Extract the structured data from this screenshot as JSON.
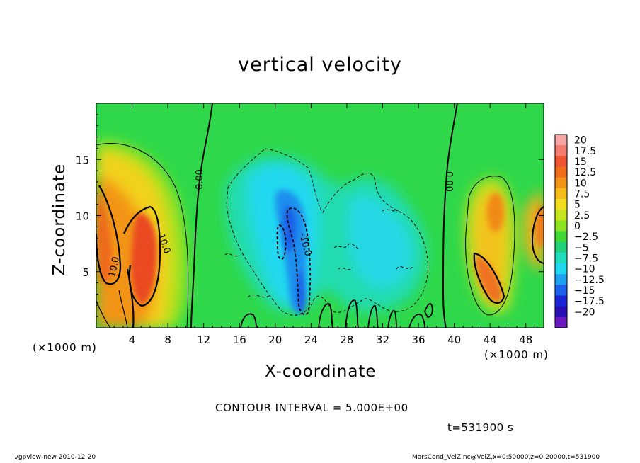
{
  "chart_data": {
    "type": "heatmap",
    "title": "vertical velocity",
    "xlabel": "X-coordinate",
    "ylabel": "Z-coordinate",
    "x_unit": "(×1000 m)",
    "y_unit": "(×1000 m)",
    "xlim": [
      0,
      50
    ],
    "ylim": [
      0,
      20
    ],
    "x_ticks": [
      4,
      8,
      12,
      16,
      20,
      24,
      28,
      32,
      36,
      40,
      44,
      48
    ],
    "y_ticks": [
      5,
      10,
      15
    ],
    "colorbar": {
      "levels": [
        20,
        17.5,
        15,
        12.5,
        10,
        7.5,
        5,
        2.5,
        0,
        -2.5,
        -5,
        -7.5,
        -10,
        -12.5,
        -15,
        -17.5,
        -20
      ],
      "labels": [
        "20",
        "17.5",
        "15",
        "12.5",
        "10",
        "7.5",
        "5",
        "2.5",
        "0",
        "−2.5",
        "−5",
        "−7.5",
        "−10",
        "−12.5",
        "−15",
        "−17.5",
        "−20"
      ],
      "colors": [
        "#f7a6a6",
        "#f37c6e",
        "#ee5532",
        "#f06d1c",
        "#f29418",
        "#f5bb1a",
        "#f1dc1e",
        "#c6e41f",
        "#8be41f",
        "#40d832",
        "#20d27a",
        "#22dcc0",
        "#22d8f0",
        "#1ea0f0",
        "#1d62ea",
        "#1c24d6",
        "#2a10b4",
        "#6a18c0"
      ]
    },
    "contour_labels": [
      "10.0",
      "10.0",
      "0.00",
      "-10.0",
      "0.00"
    ],
    "contour_interval_text": "CONTOUR INTERVAL = 5.000E+00",
    "time_text": "t=531900  s",
    "updraft_cores": [
      {
        "x": 2.0,
        "z": 7.5,
        "w": 15
      },
      {
        "x": 5.5,
        "z": 5.0,
        "w": 15
      },
      {
        "x": 3.5,
        "z": 12.0,
        "w": 7.5
      },
      {
        "x": 43.8,
        "z": 10.5,
        "w": 12.5
      },
      {
        "x": 44.2,
        "z": 6.0,
        "w": 12.5
      },
      {
        "x": 49.5,
        "z": 9.0,
        "w": 12.5
      }
    ],
    "downdraft_cores": [
      {
        "x": 22.5,
        "z": 8.0,
        "w": -12.5
      },
      {
        "x": 23.0,
        "z": 4.0,
        "w": -10
      },
      {
        "x": 21.0,
        "z": 12.5,
        "w": -7.5
      },
      {
        "x": 30.5,
        "z": 9.0,
        "w": -5
      }
    ]
  },
  "labels": {
    "x_unit_left": "(×1000 m)",
    "x_unit_right": "(×1000 m)",
    "footer_left": "./gpview-new    2010-12-20",
    "footer_right": "MarsCond_VelZ.nc@VelZ,x=0:50000,z=0:20000,t=531900"
  }
}
